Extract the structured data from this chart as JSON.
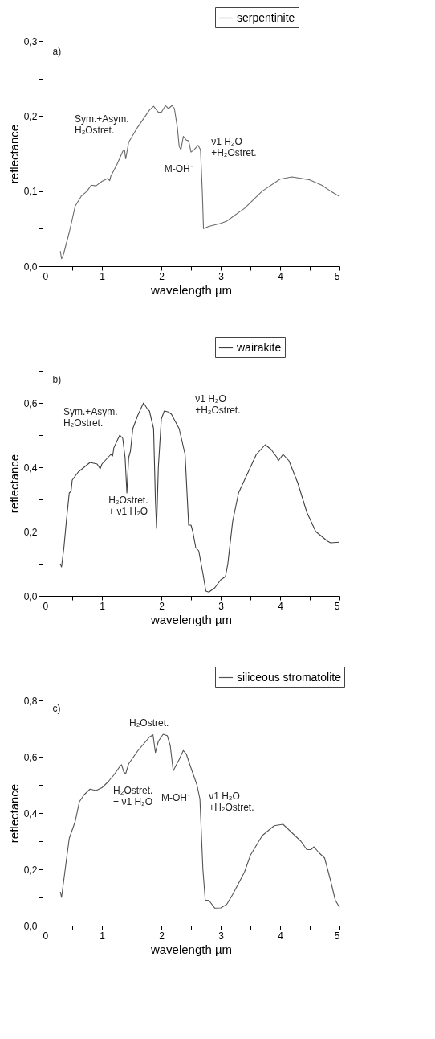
{
  "chart_data": [
    {
      "type": "line",
      "xlabel": "wavelength µm",
      "ylabel": "reflectance",
      "legend": "top right",
      "grid": false,
      "xlim": [
        0,
        5
      ],
      "ylim": [
        0,
        0.3
      ],
      "xticks": [
        0,
        {
          "value": 0.5,
          "label": null
        },
        1,
        {
          "value": 1.5,
          "label": null
        },
        2,
        {
          "value": 2.5,
          "label": null
        },
        3,
        {
          "value": 3.5,
          "label": null
        },
        4,
        {
          "value": 4.5,
          "label": null
        },
        5
      ],
      "yticks": [
        {
          "value": 0,
          "label": "0,0"
        },
        {
          "value": 0.05,
          "label": null
        },
        {
          "value": 0.1,
          "label": "0,1"
        },
        {
          "value": 0.15,
          "label": null
        },
        {
          "value": 0.2,
          "label": "0,2"
        },
        {
          "value": 0.25,
          "label": null
        },
        {
          "value": 0.3,
          "label": "0,3"
        }
      ],
      "annotations": [
        "a)",
        "Sym.+Asym.\nH₂Ostret.",
        "ν1 H₂O\n+H₂Ostret.",
        "M-OH⁻"
      ],
      "series": [
        {
          "name": "serpentinite",
          "color": "#6b6b6b",
          "x": [
            0.3,
            0.32,
            0.35,
            0.45,
            0.55,
            0.65,
            0.75,
            0.82,
            0.9,
            1.0,
            1.1,
            1.13,
            1.15,
            1.25,
            1.35,
            1.38,
            1.4,
            1.45,
            1.6,
            1.8,
            1.87,
            1.95,
            2.0,
            2.07,
            2.12,
            2.18,
            2.22,
            2.27,
            2.3,
            2.33,
            2.37,
            2.42,
            2.46,
            2.5,
            2.55,
            2.62,
            2.66,
            2.69,
            2.71,
            2.8,
            3.0,
            3.1,
            3.4,
            3.7,
            4.0,
            4.2,
            4.5,
            4.7,
            4.85,
            5.0
          ],
          "values": [
            0.02,
            0.01,
            0.015,
            0.045,
            0.08,
            0.093,
            0.1,
            0.108,
            0.107,
            0.113,
            0.117,
            0.114,
            0.12,
            0.135,
            0.153,
            0.155,
            0.143,
            0.165,
            0.185,
            0.208,
            0.213,
            0.205,
            0.205,
            0.214,
            0.21,
            0.214,
            0.21,
            0.185,
            0.16,
            0.155,
            0.173,
            0.168,
            0.167,
            0.152,
            0.155,
            0.161,
            0.155,
            0.1,
            0.05,
            0.053,
            0.057,
            0.06,
            0.077,
            0.1,
            0.116,
            0.119,
            0.115,
            0.108,
            0.1,
            0.093
          ]
        }
      ]
    },
    {
      "type": "line",
      "xlabel": "wavelength µm",
      "ylabel": "reflectance",
      "legend": "top right",
      "grid": false,
      "xlim": [
        0,
        5
      ],
      "ylim": [
        0,
        0.7
      ],
      "xticks": [
        0,
        {
          "value": 0.5,
          "label": null
        },
        1,
        {
          "value": 1.5,
          "label": null
        },
        2,
        {
          "value": 2.5,
          "label": null
        },
        3,
        {
          "value": 3.5,
          "label": null
        },
        4,
        {
          "value": 4.5,
          "label": null
        },
        5
      ],
      "yticks": [
        {
          "value": 0,
          "label": "0,0"
        },
        {
          "value": 0.1,
          "label": null
        },
        {
          "value": 0.2,
          "label": "0,2"
        },
        {
          "value": 0.3,
          "label": null
        },
        {
          "value": 0.4,
          "label": "0,4"
        },
        {
          "value": 0.5,
          "label": null
        },
        {
          "value": 0.6,
          "label": "0,6"
        },
        {
          "value": 0.7,
          "label": null
        }
      ],
      "annotations": [
        "b)",
        "Sym.+Asym.\nH₂Ostret.",
        "H₂Ostret.\n+ ν1 H₂O",
        "ν1 H₂O\n+H₂Ostret."
      ],
      "series": [
        {
          "name": "wairakite",
          "color": "#404040",
          "x": [
            0.3,
            0.32,
            0.36,
            0.4,
            0.45,
            0.48,
            0.5,
            0.6,
            0.8,
            0.92,
            0.97,
            1.0,
            1.15,
            1.18,
            1.2,
            1.3,
            1.35,
            1.39,
            1.42,
            1.45,
            1.48,
            1.52,
            1.6,
            1.7,
            1.77,
            1.8,
            1.87,
            1.9,
            1.92,
            1.95,
            2.0,
            2.05,
            2.12,
            2.17,
            2.3,
            2.4,
            2.46,
            2.5,
            2.53,
            2.58,
            2.63,
            2.7,
            2.75,
            2.8,
            2.9,
            3.0,
            3.08,
            3.12,
            3.2,
            3.3,
            3.5,
            3.6,
            3.75,
            3.85,
            3.95,
            3.97,
            4.05,
            4.15,
            4.3,
            4.45,
            4.6,
            4.8,
            4.85,
            5.0
          ],
          "values": [
            0.1,
            0.09,
            0.15,
            0.23,
            0.32,
            0.325,
            0.36,
            0.385,
            0.415,
            0.41,
            0.395,
            0.41,
            0.44,
            0.435,
            0.46,
            0.5,
            0.49,
            0.43,
            0.32,
            0.43,
            0.45,
            0.52,
            0.56,
            0.6,
            0.58,
            0.575,
            0.52,
            0.3,
            0.21,
            0.4,
            0.55,
            0.575,
            0.572,
            0.565,
            0.52,
            0.44,
            0.22,
            0.22,
            0.2,
            0.15,
            0.14,
            0.07,
            0.015,
            0.012,
            0.025,
            0.05,
            0.06,
            0.1,
            0.23,
            0.32,
            0.4,
            0.44,
            0.47,
            0.455,
            0.43,
            0.42,
            0.44,
            0.42,
            0.35,
            0.26,
            0.2,
            0.17,
            0.165,
            0.167
          ]
        }
      ]
    },
    {
      "type": "line",
      "xlabel": "wavelength µm",
      "ylabel": "reflectance",
      "legend": "top right",
      "grid": false,
      "xlim": [
        0,
        5
      ],
      "ylim": [
        0,
        0.8
      ],
      "xticks": [
        0,
        {
          "value": 0.5,
          "label": null
        },
        1,
        {
          "value": 1.5,
          "label": null
        },
        2,
        {
          "value": 2.5,
          "label": null
        },
        3,
        {
          "value": 3.5,
          "label": null
        },
        4,
        {
          "value": 4.5,
          "label": null
        },
        5
      ],
      "yticks": [
        {
          "value": 0,
          "label": "0,0"
        },
        {
          "value": 0.1,
          "label": null
        },
        {
          "value": 0.2,
          "label": "0,2"
        },
        {
          "value": 0.3,
          "label": null
        },
        {
          "value": 0.4,
          "label": "0,4"
        },
        {
          "value": 0.5,
          "label": null
        },
        {
          "value": 0.6,
          "label": "0,6"
        },
        {
          "value": 0.7,
          "label": null
        },
        {
          "value": 0.8,
          "label": "0,8"
        }
      ],
      "annotations": [
        "c)",
        "H₂Ostret.",
        "H₂Ostret.\n+ ν1 H₂O",
        "M-OH⁻",
        "ν1 H₂O\n+H₂Ostret."
      ],
      "series": [
        {
          "name": "siliceous stromatolite",
          "color": "#555555",
          "x": [
            0.3,
            0.32,
            0.4,
            0.45,
            0.55,
            0.62,
            0.7,
            0.8,
            0.9,
            1.0,
            1.1,
            1.2,
            1.3,
            1.33,
            1.37,
            1.4,
            1.45,
            1.6,
            1.8,
            1.86,
            1.9,
            1.95,
            2.03,
            2.1,
            2.15,
            2.2,
            2.3,
            2.37,
            2.42,
            2.5,
            2.6,
            2.65,
            2.7,
            2.74,
            2.8,
            2.9,
            3.0,
            3.1,
            3.2,
            3.4,
            3.5,
            3.7,
            3.9,
            4.05,
            4.2,
            4.35,
            4.45,
            4.52,
            4.57,
            4.65,
            4.75,
            4.85,
            4.93,
            5.0
          ],
          "values": [
            0.12,
            0.1,
            0.23,
            0.31,
            0.37,
            0.44,
            0.465,
            0.485,
            0.48,
            0.49,
            0.51,
            0.535,
            0.565,
            0.572,
            0.545,
            0.54,
            0.575,
            0.62,
            0.67,
            0.678,
            0.615,
            0.655,
            0.68,
            0.675,
            0.64,
            0.55,
            0.59,
            0.622,
            0.61,
            0.56,
            0.5,
            0.45,
            0.2,
            0.09,
            0.09,
            0.062,
            0.063,
            0.075,
            0.11,
            0.19,
            0.25,
            0.32,
            0.355,
            0.36,
            0.33,
            0.3,
            0.27,
            0.27,
            0.28,
            0.26,
            0.24,
            0.16,
            0.09,
            0.065
          ]
        }
      ]
    }
  ]
}
